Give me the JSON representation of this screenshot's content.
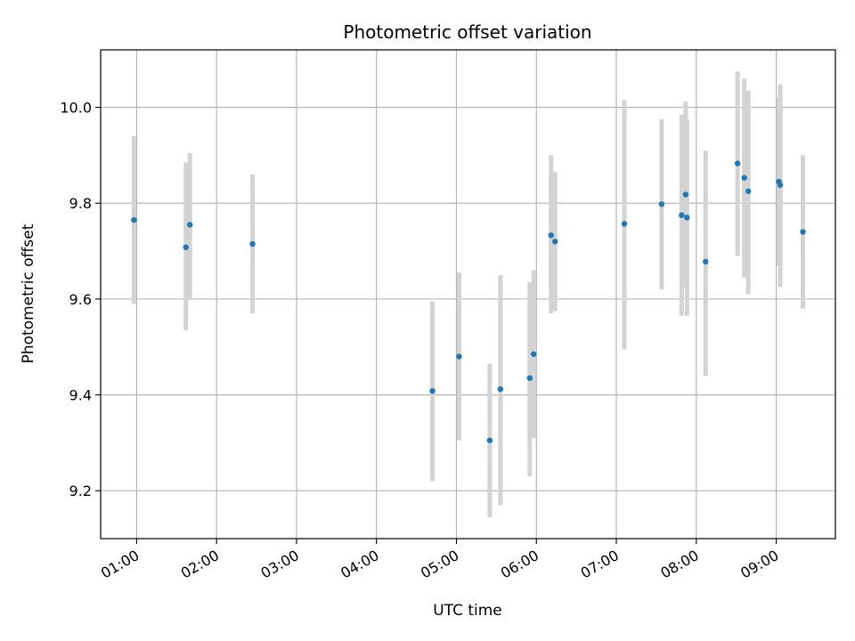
{
  "chart_data": {
    "type": "scatter",
    "title": "Photometric offset variation",
    "xlabel": "UTC time",
    "ylabel": "Photometric offset",
    "x_tick_labels": [
      "01:00",
      "02:00",
      "03:00",
      "04:00",
      "05:00",
      "06:00",
      "07:00",
      "08:00",
      "09:00"
    ],
    "y_tick_labels": [
      "9.2",
      "9.4",
      "9.6",
      "9.8",
      "10.0"
    ],
    "x_ticks_hours": [
      1,
      2,
      3,
      4,
      5,
      6,
      7,
      8,
      9
    ],
    "y_ticks": [
      9.2,
      9.4,
      9.6,
      9.8,
      10.0
    ],
    "xlim_hours": [
      0.55,
      9.74
    ],
    "ylim": [
      9.1,
      10.12
    ],
    "grid": true,
    "point_color": "#1f77b4",
    "errorbar_color": "#d3d3d3",
    "points": [
      {
        "time": "00:58",
        "y": 9.765,
        "low": 9.59,
        "high": 9.94
      },
      {
        "time": "01:37",
        "y": 9.708,
        "low": 9.535,
        "high": 9.885
      },
      {
        "time": "01:40",
        "y": 9.755,
        "low": 9.6,
        "high": 9.905
      },
      {
        "time": "02:27",
        "y": 9.715,
        "low": 9.57,
        "high": 9.86
      },
      {
        "time": "04:42",
        "y": 9.408,
        "low": 9.22,
        "high": 9.595
      },
      {
        "time": "05:02",
        "y": 9.48,
        "low": 9.305,
        "high": 9.655
      },
      {
        "time": "05:25",
        "y": 9.305,
        "low": 9.145,
        "high": 9.465
      },
      {
        "time": "05:33",
        "y": 9.412,
        "low": 9.17,
        "high": 9.65
      },
      {
        "time": "05:55",
        "y": 9.435,
        "low": 9.23,
        "high": 9.635
      },
      {
        "time": "05:58",
        "y": 9.485,
        "low": 9.31,
        "high": 9.66
      },
      {
        "time": "06:11",
        "y": 9.733,
        "low": 9.57,
        "high": 9.9
      },
      {
        "time": "06:14",
        "y": 9.72,
        "low": 9.575,
        "high": 9.865
      },
      {
        "time": "07:06",
        "y": 9.757,
        "low": 9.495,
        "high": 10.015
      },
      {
        "time": "07:34",
        "y": 9.798,
        "low": 9.62,
        "high": 9.975
      },
      {
        "time": "07:49",
        "y": 9.775,
        "low": 9.565,
        "high": 9.985
      },
      {
        "time": "07:52",
        "y": 9.818,
        "low": 9.625,
        "high": 10.012
      },
      {
        "time": "07:53",
        "y": 9.77,
        "low": 9.565,
        "high": 9.975
      },
      {
        "time": "08:07",
        "y": 9.678,
        "low": 9.44,
        "high": 9.91
      },
      {
        "time": "08:31",
        "y": 9.883,
        "low": 9.69,
        "high": 10.075
      },
      {
        "time": "08:36",
        "y": 9.853,
        "low": 9.645,
        "high": 10.06
      },
      {
        "time": "08:39",
        "y": 9.825,
        "low": 9.61,
        "high": 10.035
      },
      {
        "time": "09:02",
        "y": 9.845,
        "low": 9.67,
        "high": 10.02
      },
      {
        "time": "09:03",
        "y": 9.838,
        "low": 9.625,
        "high": 10.048
      },
      {
        "time": "09:20",
        "y": 9.74,
        "low": 9.58,
        "high": 9.9
      }
    ]
  }
}
